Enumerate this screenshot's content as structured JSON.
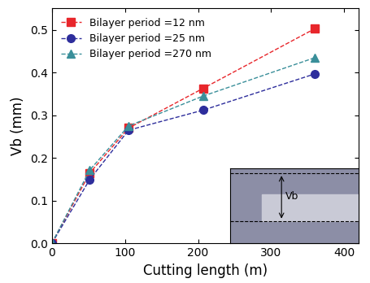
{
  "chart_data": {
    "type": "line",
    "x_label": "Cutting length (m)",
    "y_label": "Vb (mm)",
    "annotations": [
      "Vb"
    ],
    "series": [
      {
        "name": "Bilayer period =12 nm",
        "color": "#e8262b",
        "marker": "s",
        "line_style": "dashed",
        "x": [
          0,
          52,
          105,
          207,
          360
        ],
        "values": [
          0.0,
          0.165,
          0.27,
          0.363,
          0.503
        ]
      },
      {
        "name": "Bilayer period =25 nm",
        "color": "#2e2e9c",
        "marker": "o",
        "line_style": "dashed",
        "x": [
          0,
          52,
          105,
          207,
          360
        ],
        "values": [
          0.0,
          0.15,
          0.265,
          0.312,
          0.397
        ]
      },
      {
        "name": "Bilayer period =270 nm",
        "color": "#3a8f9a",
        "marker": "^",
        "line_style": "dashed",
        "x": [
          0,
          52,
          105,
          207,
          360
        ],
        "values": [
          0.0,
          0.172,
          0.275,
          0.345,
          0.435
        ]
      }
    ],
    "xlim": [
      0,
      420
    ],
    "xticks": [
      0,
      100,
      200,
      300,
      400
    ],
    "ylim": [
      0,
      0.55
    ],
    "yticks": [
      {
        "value": 0,
        "label": "0.0"
      },
      0.1,
      0.2,
      0.3,
      0.4,
      0.5
    ],
    "legend": "upper left",
    "grid": false
  }
}
